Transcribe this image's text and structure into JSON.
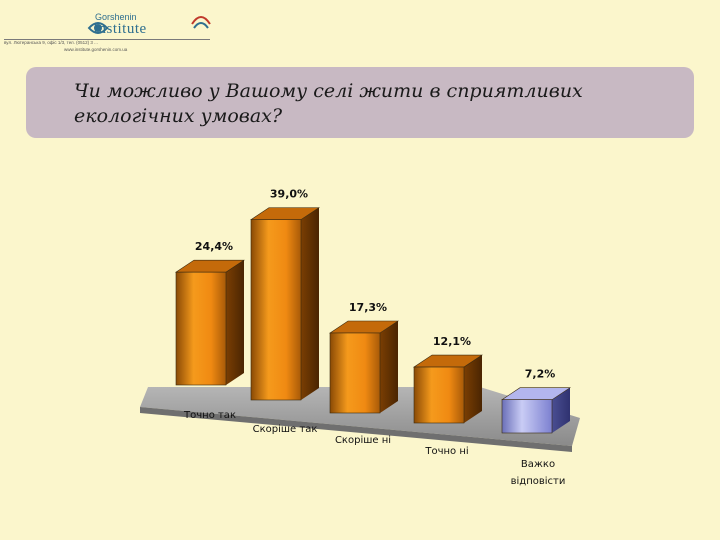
{
  "header": {
    "logo_top": "Gorshenin",
    "logo_main": "Institute",
    "address": "вул. Лютеранська 9, офіс 1/3, тел. (0512) 3 ...",
    "web": "www.institute.gorshenin.com.ua"
  },
  "title": {
    "line1": "Чи можливо у Вашому селі жити в сприятливих",
    "line2": "екологічних умовах?"
  },
  "colors": {
    "background": "#fbf6cc",
    "title_band": "#c8b9c3",
    "bar_orange": "#f08a12",
    "bar_blue": "#8a8fe8",
    "floor": "#9a9a9a"
  },
  "chart_data": {
    "type": "bar",
    "title": "",
    "xlabel": "",
    "ylabel": "",
    "ylim": [
      0,
      40
    ],
    "grid": false,
    "legend": "none",
    "categories": [
      "Точно так",
      "Скоріше так",
      "Скоріше ні",
      "Точно ні",
      "Важко відповісти"
    ],
    "values": [
      24.4,
      39.0,
      17.3,
      12.1,
      7.2
    ],
    "value_labels": [
      "24,4%",
      "39,0%",
      "17,3%",
      "12,1%",
      "7,2%"
    ],
    "category_labels": [
      [
        "Точно так"
      ],
      [
        "Скоріше так"
      ],
      [
        "Скоріше ні"
      ],
      [
        "Точно ні"
      ],
      [
        "Важко",
        "відповісти"
      ]
    ],
    "bar_colors": [
      "orange",
      "orange",
      "orange",
      "orange",
      "blue"
    ]
  }
}
